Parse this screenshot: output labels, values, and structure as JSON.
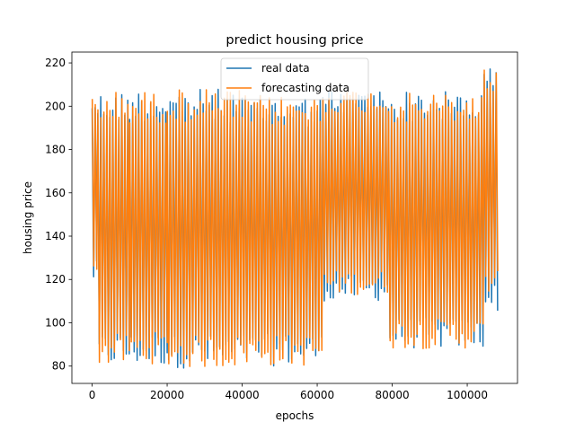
{
  "chart_data": {
    "type": "line",
    "title": "predict housing price",
    "xlabel": "epochs",
    "ylabel": "housing price",
    "xlim": [
      -5400,
      113400
    ],
    "ylim": [
      72,
      225
    ],
    "xticks": [
      0,
      20000,
      40000,
      60000,
      80000,
      100000
    ],
    "yticks": [
      80,
      100,
      120,
      140,
      160,
      180,
      200,
      220
    ],
    "grid": false,
    "legend": {
      "placement": "upper-center"
    },
    "series": [
      {
        "name": "real data",
        "color": "#1f77b4",
        "segments": [
          {
            "x_start": 0,
            "x_end": 1500,
            "low": 118,
            "high": 206
          },
          {
            "x_start": 1500,
            "x_end": 10000,
            "low": 80,
            "high": 207
          },
          {
            "x_start": 10000,
            "x_end": 20000,
            "low": 80,
            "high": 208
          },
          {
            "x_start": 20000,
            "x_end": 40000,
            "low": 79,
            "high": 208
          },
          {
            "x_start": 40000,
            "x_end": 61500,
            "low": 80,
            "high": 205
          },
          {
            "x_start": 61500,
            "x_end": 79000,
            "low": 110,
            "high": 208
          },
          {
            "x_start": 79000,
            "x_end": 104500,
            "low": 88,
            "high": 207
          },
          {
            "x_start": 104500,
            "x_end": 108500,
            "low": 105,
            "high": 218
          }
        ]
      },
      {
        "name": "forecasting data",
        "color": "#ff7f0e",
        "segments": [
          {
            "x_start": 0,
            "x_end": 1500,
            "low": 118,
            "high": 206
          },
          {
            "x_start": 1500,
            "x_end": 10000,
            "low": 80,
            "high": 207
          },
          {
            "x_start": 10000,
            "x_end": 20000,
            "low": 81,
            "high": 207
          },
          {
            "x_start": 20000,
            "x_end": 40000,
            "low": 79,
            "high": 208
          },
          {
            "x_start": 40000,
            "x_end": 61500,
            "low": 80,
            "high": 205
          },
          {
            "x_start": 61500,
            "x_end": 79000,
            "low": 113,
            "high": 208
          },
          {
            "x_start": 79000,
            "x_end": 104500,
            "low": 88,
            "high": 206
          },
          {
            "x_start": 104500,
            "x_end": 108500,
            "low": 113,
            "high": 218
          }
        ]
      }
    ]
  }
}
